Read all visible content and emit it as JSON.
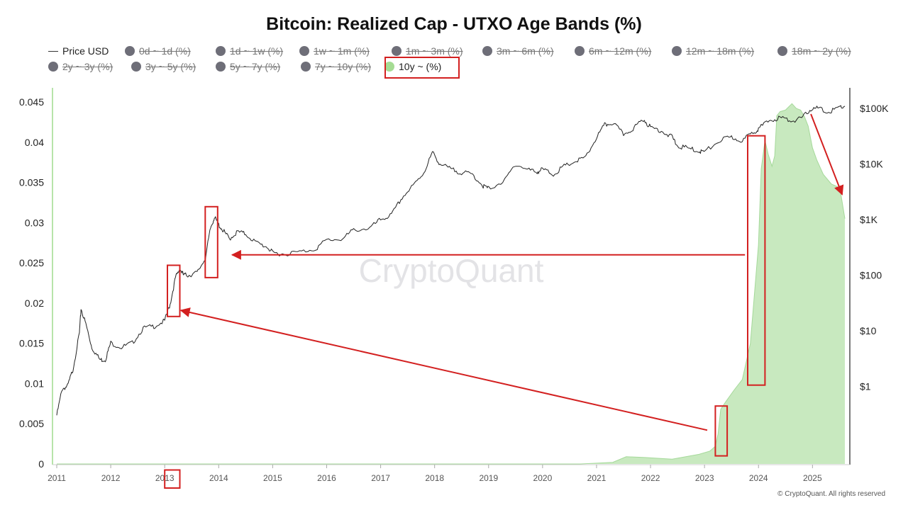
{
  "chart_data": {
    "type": "area",
    "title": "Bitcoin: Realized Cap - UTXO Age Bands (%)",
    "watermark": "CryptoQuant",
    "copyright": "© CryptoQuant. All rights reserved",
    "legend": [
      {
        "label": "Price USD",
        "symbol": "line",
        "active": true
      },
      {
        "label": "0d ~ 1d (%)",
        "symbol": "dot",
        "active": false
      },
      {
        "label": "1d ~ 1w (%)",
        "symbol": "dot",
        "active": false
      },
      {
        "label": "1w ~ 1m (%)",
        "symbol": "dot",
        "active": false
      },
      {
        "label": "1m ~ 3m (%)",
        "symbol": "dot",
        "active": false
      },
      {
        "label": "3m ~ 6m (%)",
        "symbol": "dot",
        "active": false
      },
      {
        "label": "6m ~ 12m (%)",
        "symbol": "dot",
        "active": false
      },
      {
        "label": "12m ~ 18m (%)",
        "symbol": "dot",
        "active": false
      },
      {
        "label": "18m ~ 2y (%)",
        "symbol": "dot",
        "active": false
      },
      {
        "label": "2y ~ 3y (%)",
        "symbol": "dot",
        "active": false
      },
      {
        "label": "3y ~ 5y (%)",
        "symbol": "dot",
        "active": false
      },
      {
        "label": "5y ~ 7y (%)",
        "symbol": "dot",
        "active": false
      },
      {
        "label": "7y ~ 10y (%)",
        "symbol": "dot",
        "active": false
      },
      {
        "label": "10y ~ (%)",
        "symbol": "dot",
        "active": true
      }
    ],
    "x_ticks": [
      "2011",
      "2012",
      "2013",
      "2014",
      "2015",
      "2016",
      "2017",
      "2018",
      "2019",
      "2020",
      "2021",
      "2022",
      "2023",
      "2024",
      "2025"
    ],
    "x_range": [
      2011.0,
      2025.6
    ],
    "y_left_ticks": [
      "0",
      "0.005",
      "0.01",
      "0.015",
      "0.02",
      "0.025",
      "0.03",
      "0.035",
      "0.04",
      "0.045"
    ],
    "y_left_range": [
      0,
      0.045
    ],
    "y_right_ticks": [
      "$1",
      "$10",
      "$100",
      "$1K",
      "$10K",
      "$100K"
    ],
    "y_right_scale": "log",
    "y_right_range": [
      0.04,
      130000
    ],
    "colors": {
      "price_line": "#222222",
      "area_fill": "#c8e9bf",
      "area_stroke": "#a5d99a",
      "inactive_dot": "#6e6e78",
      "active_dot": "#a5dc94",
      "annotation": "#d32020"
    },
    "series": [
      {
        "name": "10y ~ (%)",
        "axis": "left",
        "x": [
          2011.0,
          2020.7,
          2021.0,
          2021.3,
          2021.55,
          2021.9,
          2022.4,
          2022.9,
          2023.1,
          2023.2,
          2023.25,
          2023.3,
          2023.4,
          2023.55,
          2023.7,
          2023.85,
          2024.0,
          2024.05,
          2024.12,
          2024.18,
          2024.25,
          2024.3,
          2024.34,
          2024.4,
          2024.5,
          2024.62,
          2024.7,
          2024.78,
          2024.85,
          2024.92,
          2025.0,
          2025.08,
          2025.2,
          2025.35,
          2025.45,
          2025.52,
          2025.6
        ],
        "y": [
          0,
          0,
          0.0001,
          0.0002,
          0.0009,
          0.0008,
          0.0006,
          0.0012,
          0.0016,
          0.0022,
          0.0037,
          0.0068,
          0.0078,
          0.0092,
          0.0105,
          0.015,
          0.0272,
          0.0367,
          0.0402,
          0.0385,
          0.037,
          0.0383,
          0.0433,
          0.0438,
          0.044,
          0.0448,
          0.0442,
          0.044,
          0.0432,
          0.042,
          0.0393,
          0.0378,
          0.036,
          0.0348,
          0.0345,
          0.0338,
          0.0305
        ]
      },
      {
        "name": "Price USD",
        "axis": "right",
        "x": [
          2011.0,
          2011.1,
          2011.2,
          2011.3,
          2011.42,
          2011.45,
          2011.55,
          2011.65,
          2011.8,
          2011.9,
          2012.0,
          2012.2,
          2012.4,
          2012.6,
          2012.8,
          2013.0,
          2013.1,
          2013.2,
          2013.28,
          2013.35,
          2013.45,
          2013.6,
          2013.75,
          2013.85,
          2013.92,
          2014.0,
          2014.1,
          2014.2,
          2014.35,
          2014.5,
          2014.7,
          2014.9,
          2015.0,
          2015.2,
          2015.5,
          2015.8,
          2016.0,
          2016.3,
          2016.5,
          2016.8,
          2017.0,
          2017.2,
          2017.4,
          2017.6,
          2017.8,
          2017.96,
          2018.1,
          2018.3,
          2018.5,
          2018.7,
          2018.9,
          2019.0,
          2019.3,
          2019.5,
          2019.7,
          2019.9,
          2020.0,
          2020.2,
          2020.4,
          2020.6,
          2020.8,
          2021.0,
          2021.15,
          2021.3,
          2021.5,
          2021.7,
          2021.87,
          2022.0,
          2022.2,
          2022.4,
          2022.5,
          2022.7,
          2022.9,
          2023.0,
          2023.3,
          2023.5,
          2023.7,
          2023.9,
          2024.0,
          2024.2,
          2024.4,
          2024.6,
          2024.8,
          2024.95,
          2025.1,
          2025.3,
          2025.5,
          2025.6
        ],
        "y": [
          0.3,
          0.9,
          1.0,
          2.0,
          9.0,
          25.0,
          12.0,
          5.0,
          3.0,
          3.0,
          6.0,
          5.0,
          6.0,
          11.0,
          12.0,
          15.0,
          30.0,
          90.0,
          130.0,
          100.0,
          100.0,
          110.0,
          200.0,
          700.0,
          1100.0,
          800.0,
          600.0,
          450.0,
          600.0,
          550.0,
          380.0,
          320.0,
          250.0,
          240.0,
          260.0,
          300.0,
          430.0,
          450.0,
          650.0,
          700.0,
          1000.0,
          1200.0,
          2500.0,
          4000.0,
          7000.0,
          16000.0,
          10000.0,
          8000.0,
          7000.0,
          6500.0,
          4000.0,
          3600.0,
          5000.0,
          10000.0,
          8000.0,
          7200.0,
          8000.0,
          6500.0,
          9000.0,
          11000.0,
          13000.0,
          30000.0,
          50000.0,
          55000.0,
          34000.0,
          45000.0,
          64000.0,
          45000.0,
          40000.0,
          30000.0,
          21000.0,
          19000.0,
          17000.0,
          16500.0,
          27000.0,
          30000.0,
          26000.0,
          37000.0,
          43000.0,
          60000.0,
          68000.0,
          60000.0,
          65000.0,
          95000.0,
          100000.0,
          85000.0,
          105000.0,
          110000.0
        ]
      }
    ],
    "annotations": {
      "boxes": [
        {
          "x0": 2013.05,
          "x1": 2013.28,
          "y_lo": 18,
          "y_hi": 150,
          "axis": "right"
        },
        {
          "x0": 2013.75,
          "x1": 2013.98,
          "y_lo": 90,
          "y_hi": 1700,
          "axis": "right"
        },
        {
          "x0": 2023.2,
          "x1": 2023.42,
          "y_lo": 0.001,
          "y_hi": 0.0072,
          "axis": "left"
        },
        {
          "x0": 2023.8,
          "x1": 2024.12,
          "y_lo": 0.0098,
          "y_hi": 0.0408,
          "axis": "left"
        },
        {
          "x0": 2013.0,
          "x1": 2013.28,
          "y_lo": -0.00075,
          "y_hi": -0.003,
          "axis": "left"
        }
      ],
      "arrows": [
        {
          "from": [
            2023.05,
            0.0042
          ],
          "to": [
            2013.3,
            0.0191
          ]
        },
        {
          "from": [
            2023.75,
            0.026
          ],
          "to": [
            2014.25,
            0.026
          ]
        },
        {
          "from": [
            2024.97,
            0.0435
          ],
          "to": [
            2025.55,
            0.0335
          ]
        }
      ]
    }
  }
}
